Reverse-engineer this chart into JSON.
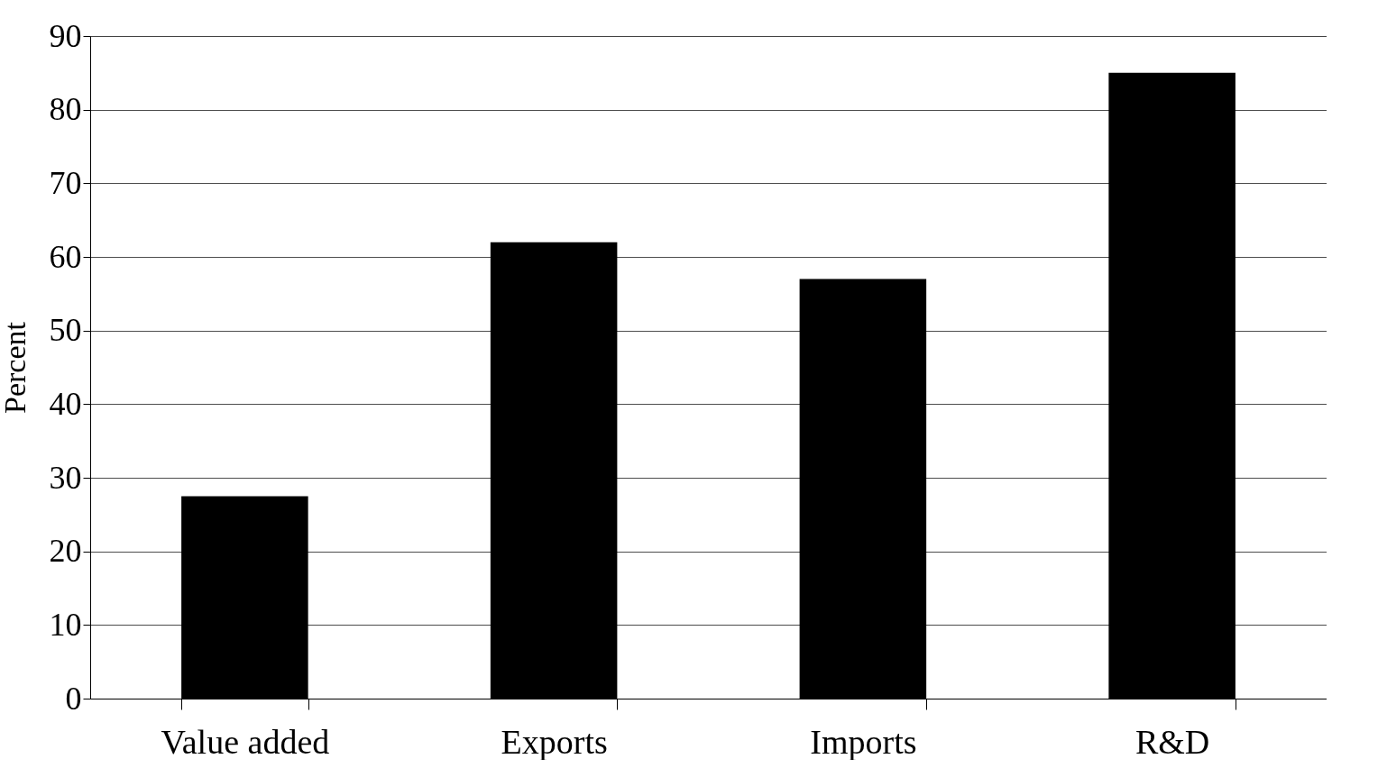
{
  "chart_data": {
    "type": "bar",
    "ylabel": "Percent",
    "categories": [
      "Value added",
      "Exports",
      "Imports",
      "R&D"
    ],
    "values": [
      27.5,
      62,
      57,
      85
    ],
    "color": "#000000",
    "ylim": [
      0,
      90
    ],
    "yticks": [
      0,
      10,
      20,
      30,
      40,
      50,
      60,
      70,
      80,
      90
    ],
    "grid": "y"
  }
}
